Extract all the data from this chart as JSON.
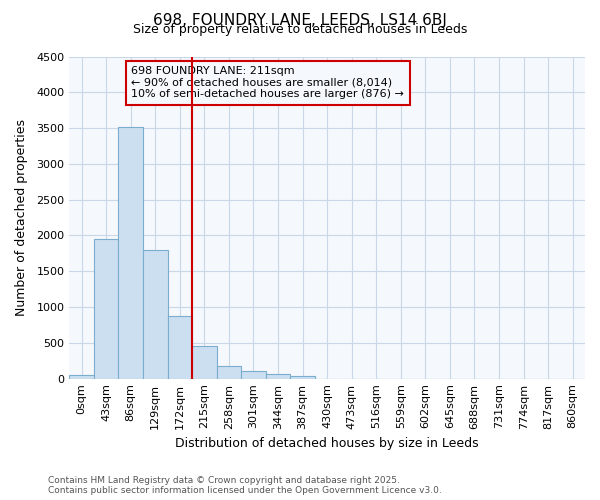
{
  "title_line1": "698, FOUNDRY LANE, LEEDS, LS14 6BJ",
  "title_line2": "Size of property relative to detached houses in Leeds",
  "xlabel": "Distribution of detached houses by size in Leeds",
  "ylabel": "Number of detached properties",
  "categories": [
    "0sqm",
    "43sqm",
    "86sqm",
    "129sqm",
    "172sqm",
    "215sqm",
    "258sqm",
    "301sqm",
    "344sqm",
    "387sqm",
    "430sqm",
    "473sqm",
    "516sqm",
    "559sqm",
    "602sqm",
    "645sqm",
    "688sqm",
    "731sqm",
    "774sqm",
    "817sqm",
    "860sqm"
  ],
  "values": [
    50,
    1950,
    3520,
    1800,
    870,
    460,
    175,
    110,
    60,
    35,
    0,
    0,
    0,
    0,
    0,
    0,
    0,
    0,
    0,
    0,
    0
  ],
  "bar_color": "#ccdff0",
  "bar_edgecolor": "#7aadce",
  "vline_x_index": 5,
  "vline_color": "#cc0000",
  "annotation_title": "698 FOUNDRY LANE: 211sqm",
  "annotation_line1": "← 90% of detached houses are smaller (8,014)",
  "annotation_line2": "10% of semi-detached houses are larger (876) →",
  "annotation_box_color": "#cc0000",
  "ylim": [
    0,
    4500
  ],
  "yticks": [
    0,
    500,
    1000,
    1500,
    2000,
    2500,
    3000,
    3500,
    4000,
    4500
  ],
  "footer_line1": "Contains HM Land Registry data © Crown copyright and database right 2025.",
  "footer_line2": "Contains public sector information licensed under the Open Government Licence v3.0.",
  "bg_color": "#ffffff",
  "plot_bg_color": "#f5f8fc",
  "grid_color": "#c8d8e8",
  "title_fontsize": 11,
  "subtitle_fontsize": 9,
  "axis_label_fontsize": 9,
  "tick_fontsize": 8,
  "footer_fontsize": 6.5
}
